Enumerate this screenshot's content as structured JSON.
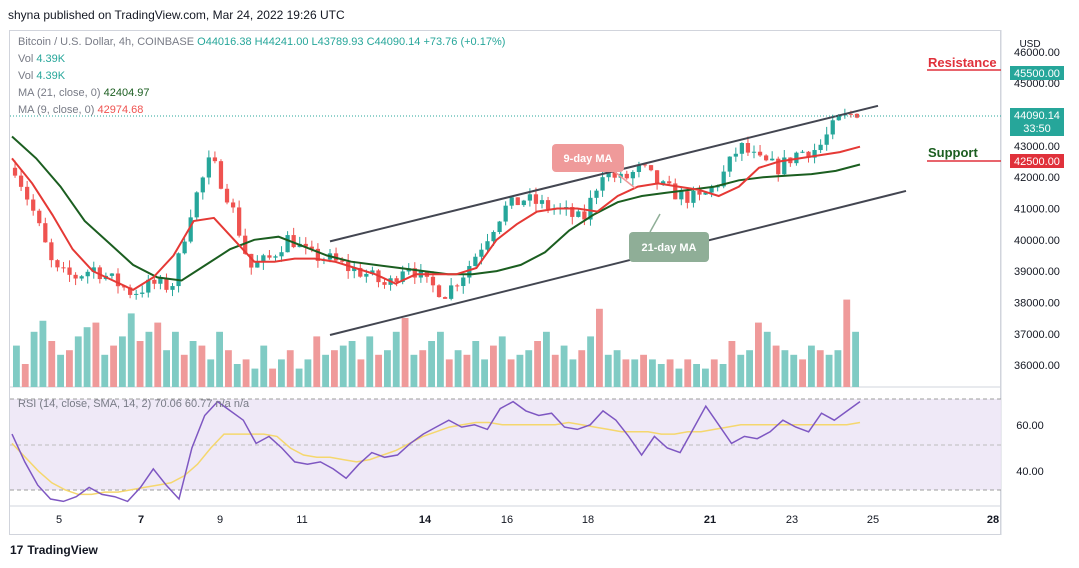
{
  "publisher_line": "shyna published on TradingView.com, Mar 24, 2022 19:26 UTC",
  "legend": {
    "symbol": "Bitcoin / U.S. Dollar, 4h, COINBASE",
    "ohlc": "O44016.38  H44241.00  L43789.93  C44090.14  +73.76 (+0.17%)",
    "vol1_label": "Vol",
    "vol1_value": "4.39K",
    "vol2_label": "Vol",
    "vol2_value": "4.39K",
    "ma21_label": "MA (21, close, 0)",
    "ma21_value": "42404.97",
    "ma9_label": "MA (9, close, 0)",
    "ma9_value": "42974.68"
  },
  "currency": "USD",
  "price_tag": {
    "price": "44090.14",
    "timer": "33:50"
  },
  "resistance": {
    "label": "Resistance",
    "tag": "45500.00",
    "color": "#e0313b"
  },
  "support": {
    "label": "Support",
    "tag": "42500.00",
    "color": "#e0313b"
  },
  "annotations": {
    "ma9": "9-day MA",
    "ma21": "21-day MA"
  },
  "rsi_legend": "RSI (14, close, SMA, 14, 2)  70.06  60.77  n/a  n/a",
  "branding": "TradingView",
  "colors": {
    "up": "#26a69a",
    "down": "#ef5350",
    "ma9": "#e53935",
    "ma21": "#1b5e20",
    "rsi": "#7e57c2",
    "rsi_sma": "#f5d76e"
  },
  "chart_data": {
    "type": "candlestick",
    "x_tick_labels": [
      "5",
      "7",
      "9",
      "11",
      "14",
      "16",
      "18",
      "21",
      "23",
      "25",
      "28"
    ],
    "y_tick_labels": [
      "36000.00",
      "37000.00",
      "38000.00",
      "39000.00",
      "40000.00",
      "41000.00",
      "42000.00",
      "43000.00",
      "44000.00",
      "45000.00",
      "46000.00"
    ],
    "ylim": [
      35300,
      46700
    ],
    "close_path": [
      42300,
      40800,
      39000,
      38800,
      39100,
      38700,
      38300,
      38600,
      38500,
      41000,
      42600,
      41200,
      39100,
      39400,
      40100,
      39500,
      39400,
      39100,
      38900,
      38500,
      39300,
      38600,
      38300,
      39000,
      40000,
      41000,
      41300,
      41100,
      40900,
      40600,
      42200,
      41900,
      42300,
      41700,
      41400,
      41300,
      41900,
      43000,
      42500,
      42300,
      42800,
      42900,
      43800,
      44090
    ],
    "ma9_path": [
      42600,
      41800,
      40800,
      39700,
      39000,
      38700,
      38400,
      38800,
      39500,
      40600,
      40700,
      40000,
      39300,
      39300,
      39400,
      39400,
      39300,
      39100,
      38900,
      38600,
      38900,
      38900,
      38900,
      39100,
      40000,
      40500,
      40900,
      41000,
      41000,
      40900,
      41400,
      41700,
      41800,
      41700,
      41600,
      41400,
      41700,
      42300,
      42500,
      42600,
      42700,
      42800,
      42975
    ],
    "ma21_path": [
      43300,
      42600,
      41700,
      40600,
      39900,
      39200,
      38800,
      38700,
      39200,
      39700,
      40000,
      40100,
      39800,
      39500,
      39300,
      39200,
      39100,
      39000,
      38900,
      38900,
      39000,
      39200,
      39600,
      40300,
      40800,
      41200,
      41400,
      41500,
      41600,
      41700,
      41900,
      42000,
      42050,
      42100,
      42200,
      42405
    ],
    "channel_upper": [
      [
        39950,
        312
      ],
      [
        44280,
        878
      ]
    ],
    "channel_lower": [
      [
        36960,
        327
      ],
      [
        41560,
        906
      ]
    ],
    "volume_relative": [
      0.45,
      0.25,
      0.6,
      0.72,
      0.5,
      0.35,
      0.4,
      0.55,
      0.65,
      0.7,
      0.35,
      0.45,
      0.55,
      0.8,
      0.5,
      0.6,
      0.7,
      0.4,
      0.6,
      0.35,
      0.5,
      0.45,
      0.3,
      0.6,
      0.4,
      0.25,
      0.3,
      0.2,
      0.45,
      0.2,
      0.3,
      0.4,
      0.2,
      0.3,
      0.55,
      0.35,
      0.4,
      0.45,
      0.5,
      0.3,
      0.55,
      0.35,
      0.4,
      0.6,
      0.75,
      0.35,
      0.4,
      0.5,
      0.6,
      0.3,
      0.4,
      0.35,
      0.5,
      0.3,
      0.45,
      0.55,
      0.3,
      0.35,
      0.4,
      0.5,
      0.6,
      0.35,
      0.45,
      0.3,
      0.4,
      0.55,
      0.85,
      0.35,
      0.4,
      0.3,
      0.3,
      0.35,
      0.3,
      0.25,
      0.3,
      0.2,
      0.3,
      0.25,
      0.2,
      0.3,
      0.25,
      0.5,
      0.35,
      0.4,
      0.7,
      0.6,
      0.45,
      0.4,
      0.35,
      0.3,
      0.45,
      0.4,
      0.35,
      0.4,
      0.95,
      0.6
    ],
    "rsi": {
      "title": "RSI (14, close, SMA, 14, 2)",
      "value": 70.06,
      "sma": 60.77,
      "y_tick_labels": [
        "40.00",
        "60.00"
      ],
      "ylim": [
        25,
        75
      ],
      "rsi_path": [
        56,
        44,
        34,
        28,
        27,
        29,
        33,
        30,
        29,
        27,
        33,
        41,
        34,
        28,
        50,
        64,
        70,
        66,
        62,
        52,
        55,
        50,
        44,
        43,
        44,
        41,
        37,
        43,
        48,
        46,
        47,
        52,
        56,
        59,
        62,
        59,
        60,
        58,
        67,
        70,
        66,
        64,
        65,
        59,
        58,
        60,
        66,
        62,
        55,
        47,
        55,
        50,
        48,
        58,
        68,
        60,
        52,
        55,
        54,
        57,
        62,
        59,
        57,
        65,
        62,
        66,
        70
      ],
      "sma_path": [
        52,
        46,
        40,
        35,
        32,
        30,
        30,
        31,
        31,
        32,
        33,
        34,
        35,
        38,
        43,
        50,
        56,
        56,
        56,
        56,
        55,
        50,
        47,
        46,
        46,
        45,
        44,
        45,
        47,
        49,
        52,
        55,
        57,
        59,
        60,
        61,
        61,
        60,
        60,
        60,
        60,
        60,
        61,
        60,
        59,
        58,
        57,
        57,
        57,
        56,
        56,
        57,
        57,
        58,
        59,
        60,
        60,
        60,
        60,
        60,
        60,
        60,
        60,
        60,
        61
      ]
    }
  }
}
